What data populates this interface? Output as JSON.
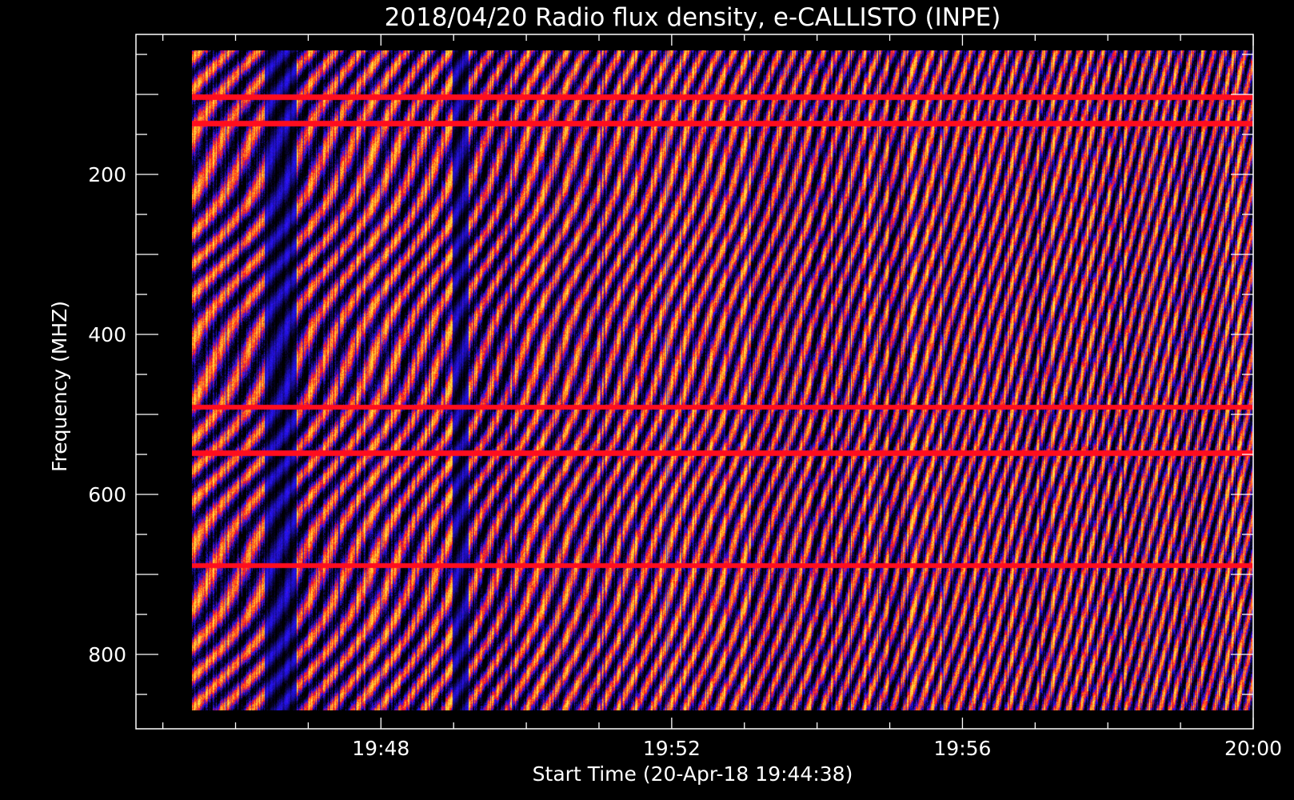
{
  "chart_data": {
    "type": "heatmap",
    "title": "2018/04/20  Radio flux density, e-CALLISTO (INPE)",
    "xlabel": "Start Time (20-Apr-18 19:44:38)",
    "ylabel": "Frequency (MHZ)",
    "x_tick_labels": [
      "19:48",
      "19:52",
      "19:56",
      "20:00"
    ],
    "x_tick_minutes": [
      48,
      52,
      56,
      60
    ],
    "x_range_minutes": [
      44.63,
      60.0
    ],
    "x_data_extent_minutes": [
      45.4,
      60.0
    ],
    "y_tick_labels": [
      "200",
      "400",
      "600",
      "800"
    ],
    "y_tick_values": [
      200,
      400,
      600,
      800
    ],
    "y_range": [
      45,
      870
    ],
    "y_data_extent": [
      45,
      870
    ],
    "y_reversed": true,
    "colormap": [
      "#000000",
      "#2a14ff",
      "#ff0d1e",
      "#ff8c1a",
      "#ffe040"
    ],
    "emission_pattern": "periodic diagonal yellow/red bands on blue-black background, drifting from ~high to ~low frequency"
  }
}
